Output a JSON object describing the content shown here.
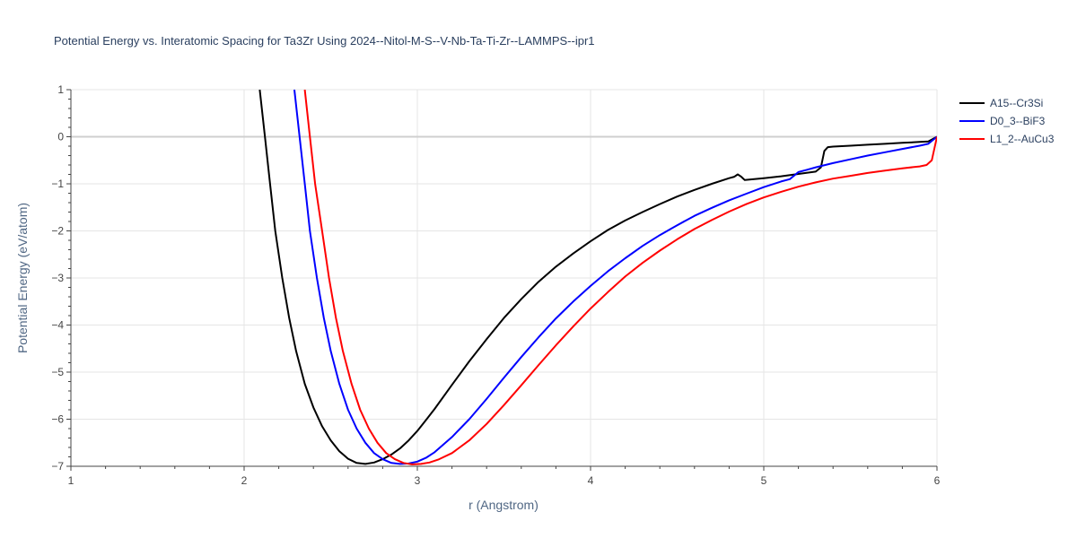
{
  "chart_data": {
    "type": "line",
    "title": "Potential Energy vs. Interatomic Spacing for Ta3Zr Using 2024--Nitol-M-S--V-Nb-Ta-Ti-Zr--LAMMPS--ipr1",
    "xlabel": "r (Angstrom)",
    "ylabel": "Potential Energy (eV/atom)",
    "xlim": [
      1,
      6
    ],
    "ylim": [
      -7,
      1
    ],
    "x_ticks": [
      "1",
      "2",
      "3",
      "4",
      "5",
      "6"
    ],
    "y_ticks": [
      "1",
      "0",
      "−1",
      "−2",
      "−3",
      "−4",
      "−5",
      "−6",
      "−7"
    ],
    "grid": true,
    "legend_position": "top-right",
    "series": [
      {
        "name": "A15--Cr3Si",
        "color": "#000000",
        "points": [
          [
            2.09,
            1.0
          ],
          [
            2.12,
            0.0
          ],
          [
            2.15,
            -1.0
          ],
          [
            2.18,
            -2.0
          ],
          [
            2.22,
            -3.0
          ],
          [
            2.26,
            -3.85
          ],
          [
            2.3,
            -4.55
          ],
          [
            2.35,
            -5.25
          ],
          [
            2.4,
            -5.75
          ],
          [
            2.45,
            -6.15
          ],
          [
            2.5,
            -6.45
          ],
          [
            2.55,
            -6.68
          ],
          [
            2.6,
            -6.84
          ],
          [
            2.65,
            -6.93
          ],
          [
            2.7,
            -6.95
          ],
          [
            2.75,
            -6.92
          ],
          [
            2.8,
            -6.85
          ],
          [
            2.85,
            -6.75
          ],
          [
            2.9,
            -6.62
          ],
          [
            2.95,
            -6.45
          ],
          [
            3.0,
            -6.25
          ],
          [
            3.05,
            -6.02
          ],
          [
            3.1,
            -5.78
          ],
          [
            3.2,
            -5.27
          ],
          [
            3.3,
            -4.77
          ],
          [
            3.4,
            -4.3
          ],
          [
            3.5,
            -3.85
          ],
          [
            3.6,
            -3.45
          ],
          [
            3.7,
            -3.08
          ],
          [
            3.8,
            -2.76
          ],
          [
            3.9,
            -2.48
          ],
          [
            4.0,
            -2.22
          ],
          [
            4.1,
            -1.98
          ],
          [
            4.2,
            -1.78
          ],
          [
            4.3,
            -1.6
          ],
          [
            4.4,
            -1.43
          ],
          [
            4.5,
            -1.27
          ],
          [
            4.6,
            -1.13
          ],
          [
            4.7,
            -1.0
          ],
          [
            4.8,
            -0.88
          ],
          [
            4.83,
            -0.85
          ],
          [
            4.85,
            -0.8
          ],
          [
            4.87,
            -0.85
          ],
          [
            4.89,
            -0.92
          ],
          [
            5.0,
            -0.88
          ],
          [
            5.1,
            -0.84
          ],
          [
            5.2,
            -0.79
          ],
          [
            5.3,
            -0.74
          ],
          [
            5.33,
            -0.65
          ],
          [
            5.35,
            -0.3
          ],
          [
            5.37,
            -0.22
          ],
          [
            5.4,
            -0.21
          ],
          [
            5.5,
            -0.19
          ],
          [
            5.6,
            -0.17
          ],
          [
            5.7,
            -0.15
          ],
          [
            5.8,
            -0.13
          ],
          [
            5.9,
            -0.11
          ],
          [
            5.95,
            -0.1
          ],
          [
            6.0,
            0.0
          ]
        ]
      },
      {
        "name": "D0_3--BiF3",
        "color": "#0000ff",
        "points": [
          [
            2.29,
            1.0
          ],
          [
            2.32,
            0.0
          ],
          [
            2.35,
            -1.0
          ],
          [
            2.38,
            -2.0
          ],
          [
            2.42,
            -3.0
          ],
          [
            2.46,
            -3.85
          ],
          [
            2.5,
            -4.55
          ],
          [
            2.55,
            -5.25
          ],
          [
            2.6,
            -5.8
          ],
          [
            2.65,
            -6.2
          ],
          [
            2.7,
            -6.5
          ],
          [
            2.75,
            -6.72
          ],
          [
            2.8,
            -6.85
          ],
          [
            2.85,
            -6.93
          ],
          [
            2.9,
            -6.95
          ],
          [
            2.95,
            -6.94
          ],
          [
            3.0,
            -6.9
          ],
          [
            3.05,
            -6.82
          ],
          [
            3.1,
            -6.7
          ],
          [
            3.2,
            -6.38
          ],
          [
            3.3,
            -6.0
          ],
          [
            3.4,
            -5.57
          ],
          [
            3.5,
            -5.12
          ],
          [
            3.6,
            -4.68
          ],
          [
            3.7,
            -4.26
          ],
          [
            3.8,
            -3.86
          ],
          [
            3.9,
            -3.5
          ],
          [
            4.0,
            -3.17
          ],
          [
            4.1,
            -2.86
          ],
          [
            4.2,
            -2.58
          ],
          [
            4.3,
            -2.32
          ],
          [
            4.4,
            -2.09
          ],
          [
            4.5,
            -1.88
          ],
          [
            4.6,
            -1.68
          ],
          [
            4.7,
            -1.51
          ],
          [
            4.8,
            -1.35
          ],
          [
            4.9,
            -1.21
          ],
          [
            5.0,
            -1.07
          ],
          [
            5.1,
            -0.95
          ],
          [
            5.15,
            -0.9
          ],
          [
            5.2,
            -0.75
          ],
          [
            5.25,
            -0.7
          ],
          [
            5.3,
            -0.65
          ],
          [
            5.4,
            -0.56
          ],
          [
            5.5,
            -0.48
          ],
          [
            5.6,
            -0.4
          ],
          [
            5.7,
            -0.33
          ],
          [
            5.8,
            -0.26
          ],
          [
            5.9,
            -0.19
          ],
          [
            5.95,
            -0.15
          ],
          [
            6.0,
            0.0
          ]
        ]
      },
      {
        "name": "L1_2--AuCu3",
        "color": "#ff0000",
        "points": [
          [
            2.35,
            1.0
          ],
          [
            2.38,
            0.0
          ],
          [
            2.41,
            -1.0
          ],
          [
            2.45,
            -2.0
          ],
          [
            2.49,
            -3.0
          ],
          [
            2.53,
            -3.85
          ],
          [
            2.57,
            -4.55
          ],
          [
            2.62,
            -5.25
          ],
          [
            2.67,
            -5.8
          ],
          [
            2.72,
            -6.2
          ],
          [
            2.77,
            -6.5
          ],
          [
            2.82,
            -6.72
          ],
          [
            2.87,
            -6.85
          ],
          [
            2.92,
            -6.93
          ],
          [
            2.97,
            -6.96
          ],
          [
            3.02,
            -6.95
          ],
          [
            3.07,
            -6.92
          ],
          [
            3.12,
            -6.86
          ],
          [
            3.2,
            -6.72
          ],
          [
            3.3,
            -6.45
          ],
          [
            3.4,
            -6.1
          ],
          [
            3.5,
            -5.7
          ],
          [
            3.6,
            -5.28
          ],
          [
            3.7,
            -4.85
          ],
          [
            3.8,
            -4.43
          ],
          [
            3.9,
            -4.03
          ],
          [
            4.0,
            -3.65
          ],
          [
            4.1,
            -3.3
          ],
          [
            4.2,
            -2.97
          ],
          [
            4.3,
            -2.68
          ],
          [
            4.4,
            -2.42
          ],
          [
            4.5,
            -2.18
          ],
          [
            4.6,
            -1.96
          ],
          [
            4.7,
            -1.77
          ],
          [
            4.8,
            -1.59
          ],
          [
            4.9,
            -1.43
          ],
          [
            5.0,
            -1.29
          ],
          [
            5.1,
            -1.17
          ],
          [
            5.2,
            -1.06
          ],
          [
            5.3,
            -0.97
          ],
          [
            5.4,
            -0.89
          ],
          [
            5.5,
            -0.83
          ],
          [
            5.6,
            -0.77
          ],
          [
            5.7,
            -0.72
          ],
          [
            5.8,
            -0.67
          ],
          [
            5.9,
            -0.63
          ],
          [
            5.94,
            -0.6
          ],
          [
            5.97,
            -0.5
          ],
          [
            6.0,
            0.0
          ]
        ]
      }
    ]
  }
}
